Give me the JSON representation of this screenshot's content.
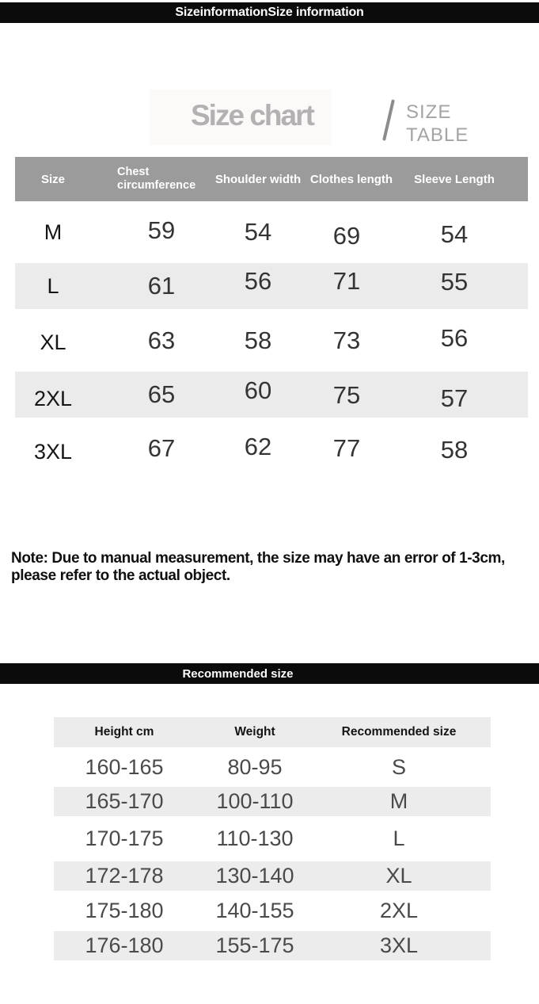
{
  "top_banner": {
    "label": "SizeinformationSize information"
  },
  "title_block": {
    "title": "Size chart",
    "subtitle_line1": "SIZE",
    "subtitle_line2": "TABLE"
  },
  "size_table": {
    "columns": [
      "Size",
      "Chest circumference",
      "Shoulder width",
      "Clothes length",
      "Sleeve Length"
    ],
    "rows": [
      [
        "M",
        "59",
        "54",
        "69",
        "54"
      ],
      [
        "L",
        "61",
        "56",
        "71",
        "55"
      ],
      [
        "XL",
        "63",
        "58",
        "73",
        "56"
      ],
      [
        "2XL",
        "65",
        "60",
        "75",
        "57"
      ],
      [
        "3XL",
        "67",
        "62",
        "77",
        "58"
      ]
    ]
  },
  "note": {
    "line1": "Note: Due to manual measurement, the size may have an error of 1-3cm,",
    "line2": "please refer to the actual object."
  },
  "recommend_banner": {
    "label": "Recommended size"
  },
  "recommend_table": {
    "columns": [
      "Height cm",
      "Weight",
      "Recommended size"
    ],
    "rows": [
      [
        "160-165",
        "80-95",
        "S"
      ],
      [
        "165-170",
        "100-110",
        "M"
      ],
      [
        "170-175",
        "110-130",
        "L"
      ],
      [
        "172-178",
        "130-140",
        "XL"
      ],
      [
        "175-180",
        "140-155",
        "2XL"
      ],
      [
        "176-180",
        "155-175",
        "3XL"
      ]
    ]
  },
  "colors": {
    "banner_bg": "#0b0b0b",
    "banner_text": "#ffffff",
    "size_table_header_bg": "#9b9b9b",
    "size_table_header_text": "#ffffff",
    "alt_row_bg": "#ebebeb",
    "recommend_header_bg": "#ececec",
    "title_gray": "#b3b1b2",
    "subtitle_gray": "#a5a3a4",
    "number_text": "#343434",
    "recommend_text": "#4a4a4a",
    "note_text": "#101010"
  }
}
